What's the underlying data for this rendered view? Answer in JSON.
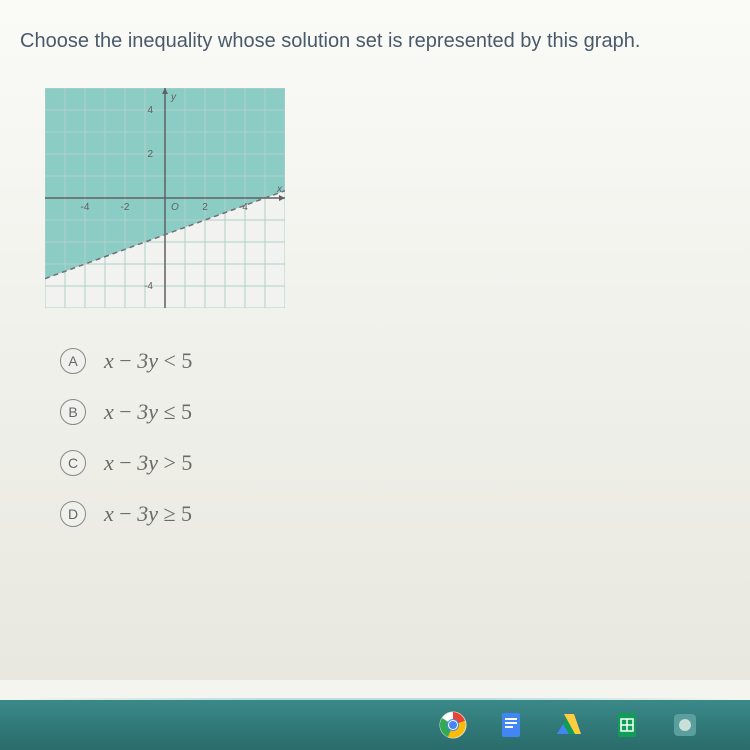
{
  "question": "Choose the inequality whose solution set is represented by this graph.",
  "graph": {
    "background_shade": "#8bccc4",
    "unshaded": "#f2f2f0",
    "grid_color": "#b0d0cc",
    "axis_color": "#606060",
    "line_color": "#707070",
    "line_dashed": true,
    "xlim": [
      -6,
      6
    ],
    "ylim": [
      -5,
      5
    ],
    "boundary_points": [
      [
        -6,
        -3.667
      ],
      [
        6,
        0.333
      ]
    ],
    "y_labels": [
      {
        "v": 4,
        "t": "4"
      },
      {
        "v": 2,
        "t": "2"
      },
      {
        "v": -4,
        "t": "-4"
      }
    ],
    "x_labels": [
      {
        "v": -4,
        "t": "-4"
      },
      {
        "v": -2,
        "t": "-2"
      },
      {
        "v": 2,
        "t": "2"
      },
      {
        "v": 4,
        "t": "4"
      }
    ],
    "origin_label": "O",
    "y_axis_label": "y",
    "x_axis_label": "x",
    "grid_step": 1,
    "label_fontsize": 10
  },
  "answers": [
    {
      "letter": "A",
      "lhs_var": "x",
      "coeff": "3y",
      "op": "<",
      "rhs": "5"
    },
    {
      "letter": "B",
      "lhs_var": "x",
      "coeff": "3y",
      "op": "≤",
      "rhs": "5"
    },
    {
      "letter": "C",
      "lhs_var": "x",
      "coeff": "3y",
      "op": ">",
      "rhs": "5"
    },
    {
      "letter": "D",
      "lhs_var": "x",
      "coeff": "3y",
      "op": "≥",
      "rhs": "5"
    }
  ],
  "taskbar": {
    "bg_top": "#3a8989",
    "bg_bottom": "#2a6b6b",
    "icons": [
      {
        "name": "chrome-icon"
      },
      {
        "name": "docs-icon"
      },
      {
        "name": "drive-icon"
      },
      {
        "name": "sheets-icon"
      },
      {
        "name": "app-icon"
      }
    ]
  },
  "colors": {
    "page_bg": "#f5f5f0",
    "question_text": "#4a5a6a",
    "answer_text": "#6a6a6a",
    "circle_border": "#888888"
  }
}
